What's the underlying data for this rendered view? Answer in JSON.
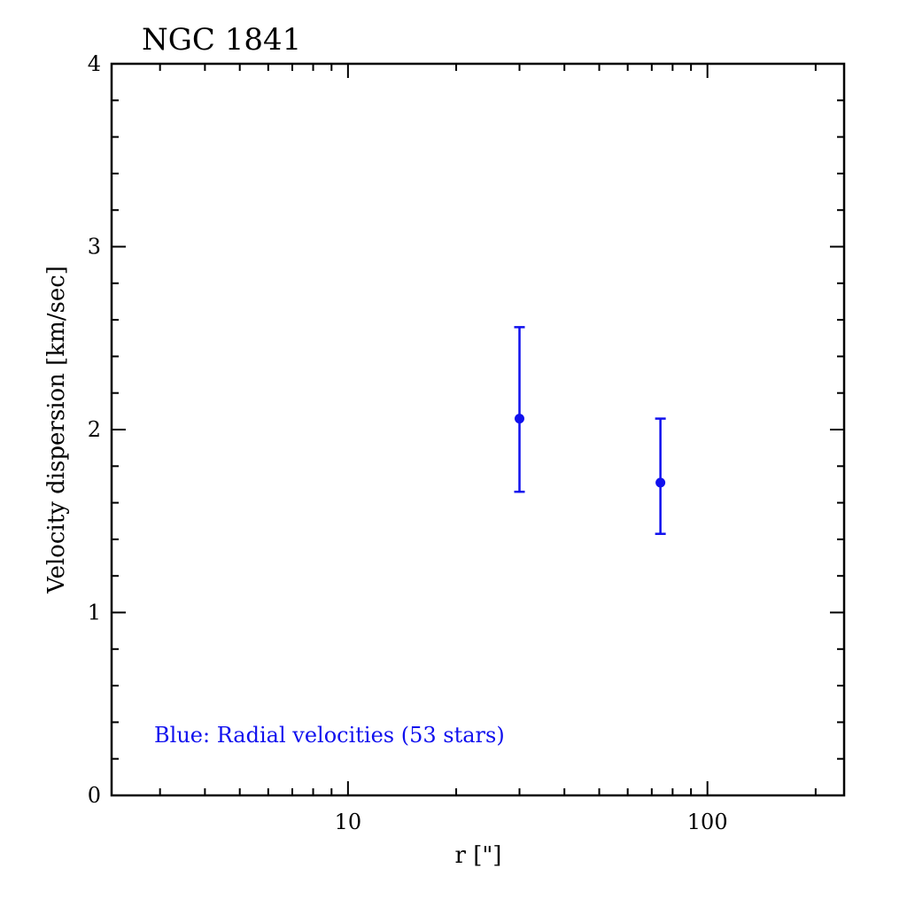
{
  "chart_data": {
    "type": "scatter",
    "title": "NGC 1841",
    "xlabel": "r [\"]",
    "ylabel": "Velocity dispersion [km/sec]",
    "x_scale": "log",
    "xlim": [
      2.2,
      240
    ],
    "ylim": [
      0,
      4
    ],
    "x_tick_labels": [
      "10",
      "100"
    ],
    "y_tick_labels": [
      "0",
      "1",
      "2",
      "3",
      "4"
    ],
    "grid": false,
    "series": [
      {
        "color": "#1010ee",
        "points": [
          {
            "x": 30,
            "y": 2.06,
            "err_low": 1.66,
            "err_high": 2.56
          },
          {
            "x": 74,
            "y": 1.71,
            "err_low": 1.43,
            "err_high": 2.06
          }
        ]
      }
    ],
    "annotation": {
      "text": "Blue: Radial velocities (53 stars)",
      "color": "#1010ee"
    }
  }
}
